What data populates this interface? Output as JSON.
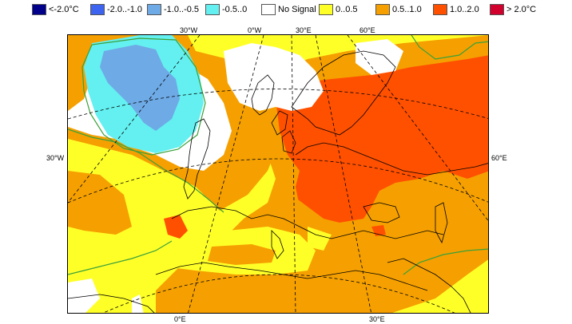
{
  "legend": {
    "items": [
      {
        "label": "<-2.0°C",
        "color": "#00008b"
      },
      {
        "label": "-2.0..-1.0",
        "color": "#3c64f0"
      },
      {
        "label": "-1.0..-0.5",
        "color": "#6eaae6"
      },
      {
        "label": "-0.5..0",
        "color": "#64f0f0"
      },
      {
        "label": "No Signal",
        "color": "#ffffff"
      },
      {
        "label": "0..0.5",
        "color": "#ffff28"
      },
      {
        "label": "0.5..1.0",
        "color": "#f5a000"
      },
      {
        "label": "1.0..2.0",
        "color": "#ff5000"
      },
      {
        "label": "> 2.0°C",
        "color": "#d2002d"
      }
    ]
  },
  "map": {
    "top_labels": [
      "30°W",
      "0°W",
      "30°E",
      "60°E"
    ],
    "left_label": "30°W",
    "right_label": "60°E",
    "bottom_labels": [
      "0°E",
      "30°E"
    ]
  },
  "colors": {
    "coastline": "#000000",
    "contour": "#3aa03a",
    "graticule": "#000000"
  }
}
